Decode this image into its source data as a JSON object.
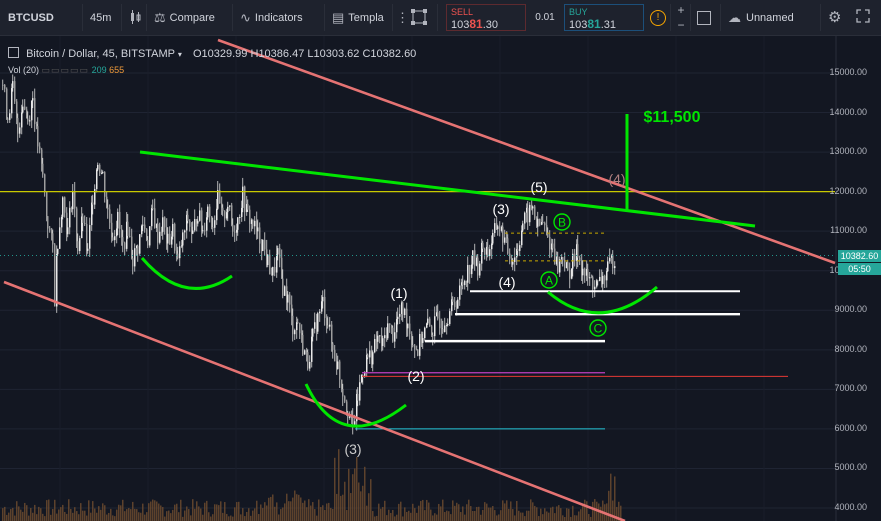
{
  "toolbar": {
    "symbol": "BTCUSD",
    "interval": "45m",
    "compare_label": "Compare",
    "indicators_label": "Indicators",
    "templates_label": "Templa",
    "sell_label": "SELL",
    "sell_price_main": "103",
    "sell_price_bold": "81",
    "sell_price_tail": ".30",
    "spread": "0.01",
    "buy_label": "BUY",
    "buy_price_main": "103",
    "buy_price_bold": "81",
    "buy_price_tail": ".31",
    "layout_name": "Unnamed"
  },
  "legend": {
    "title": "Bitcoin / Dollar, 45, BITSTAMP",
    "o_label": "O",
    "o_value": "10329.99",
    "h_label": "H",
    "h_value": "10386.47",
    "l_label": "L",
    "l_value": "10303.62",
    "c_label": "C",
    "c_value": "10382.60",
    "vol_label": "Vol (20)",
    "vol_value_1": "209",
    "vol_value_2": "655"
  },
  "price_axis": {
    "labels": [
      "15000.00",
      "14000.00",
      "13000.00",
      "12000.00",
      "11000.00",
      "10000.00",
      "9000.00",
      "8000.00",
      "7000.00",
      "6000.00",
      "5000.00",
      "4000.00"
    ],
    "current_price_tag": "10382.60",
    "countdown_tag": "05:50"
  },
  "annotations": {
    "target": "$11,500",
    "wave_1": "(1)",
    "wave_2": "(2)",
    "wave_3_low": "(3)",
    "wave_3_high": "(3)",
    "wave_4": "(4)",
    "wave_5": "(5)",
    "wave_4_faded": "(4)",
    "wave_A": "A",
    "wave_B": "B",
    "wave_C": "C"
  },
  "colors": {
    "background": "#131722",
    "candle_up": "#e8e8e8",
    "candle_down": "#e8e8e8",
    "trend_channel": "#e57373",
    "trend_green": "#00e600",
    "yellow_line": "#c8c800",
    "support_white": "#ffffff",
    "volume": "#7a5a3a"
  },
  "chart_data": {
    "type": "candlestick",
    "symbol": "BTCUSD",
    "exchange": "BITSTAMP",
    "timeframe": "45",
    "ylim": [
      3800,
      15500
    ],
    "y_ticks": [
      4000,
      5000,
      6000,
      7000,
      8000,
      9000,
      10000,
      11000,
      12000,
      13000,
      14000,
      15000
    ],
    "ohlc_last": {
      "open": 10329.99,
      "high": 10386.47,
      "low": 10303.62,
      "close": 10382.6
    },
    "price_path": [
      [
        0,
        14700
      ],
      [
        5,
        13900
      ],
      [
        10,
        14600
      ],
      [
        15,
        13500
      ],
      [
        20,
        14300
      ],
      [
        25,
        13800
      ],
      [
        30,
        14400
      ],
      [
        35,
        13200
      ],
      [
        40,
        12400
      ],
      [
        45,
        11200
      ],
      [
        50,
        10600
      ],
      [
        52,
        9300
      ],
      [
        55,
        10800
      ],
      [
        60,
        11800
      ],
      [
        65,
        11000
      ],
      [
        70,
        12000
      ],
      [
        75,
        10600
      ],
      [
        80,
        11300
      ],
      [
        85,
        10400
      ],
      [
        90,
        11900
      ],
      [
        95,
        12800
      ],
      [
        100,
        12400
      ],
      [
        105,
        11500
      ],
      [
        110,
        10900
      ],
      [
        115,
        11300
      ],
      [
        120,
        10600
      ],
      [
        125,
        11100
      ],
      [
        130,
        10300
      ],
      [
        135,
        10600
      ],
      [
        140,
        11200
      ],
      [
        145,
        10800
      ],
      [
        150,
        11500
      ],
      [
        155,
        10900
      ],
      [
        160,
        11200
      ],
      [
        165,
        10700
      ],
      [
        170,
        11000
      ],
      [
        175,
        10200
      ],
      [
        180,
        10800
      ],
      [
        185,
        11300
      ],
      [
        190,
        10900
      ],
      [
        195,
        11500
      ],
      [
        200,
        11000
      ],
      [
        205,
        11600
      ],
      [
        210,
        11200
      ],
      [
        215,
        11800
      ],
      [
        220,
        11300
      ],
      [
        225,
        11700
      ],
      [
        230,
        11000
      ],
      [
        235,
        11300
      ],
      [
        240,
        11900
      ],
      [
        245,
        11400
      ],
      [
        250,
        11200
      ],
      [
        255,
        10900
      ],
      [
        260,
        10700
      ],
      [
        265,
        10200
      ],
      [
        270,
        9900
      ],
      [
        275,
        10400
      ],
      [
        280,
        9600
      ],
      [
        285,
        9300
      ],
      [
        290,
        8600
      ],
      [
        295,
        8700
      ],
      [
        300,
        8100
      ],
      [
        305,
        7700
      ],
      [
        310,
        8300
      ],
      [
        315,
        8800
      ],
      [
        320,
        9200
      ],
      [
        325,
        8700
      ],
      [
        330,
        8000
      ],
      [
        335,
        7600
      ],
      [
        340,
        7000
      ],
      [
        345,
        6500
      ],
      [
        350,
        6000
      ],
      [
        355,
        6800
      ],
      [
        360,
        7500
      ],
      [
        365,
        7800
      ],
      [
        370,
        7900
      ],
      [
        375,
        8300
      ],
      [
        380,
        8100
      ],
      [
        385,
        8600
      ],
      [
        390,
        8400
      ],
      [
        395,
        8800
      ],
      [
        400,
        9000
      ],
      [
        405,
        8700
      ],
      [
        410,
        8200
      ],
      [
        415,
        8000
      ],
      [
        420,
        8400
      ],
      [
        425,
        8600
      ],
      [
        430,
        8500
      ],
      [
        435,
        8800
      ],
      [
        440,
        8700
      ],
      [
        445,
        8900
      ],
      [
        450,
        9100
      ],
      [
        455,
        9300
      ],
      [
        460,
        9700
      ],
      [
        465,
        10000
      ],
      [
        470,
        10300
      ],
      [
        475,
        10100
      ],
      [
        480,
        10600
      ],
      [
        485,
        10500
      ],
      [
        490,
        10800
      ],
      [
        495,
        11200
      ],
      [
        500,
        10900
      ],
      [
        505,
        10500
      ],
      [
        510,
        10300
      ],
      [
        515,
        10600
      ],
      [
        520,
        11200
      ],
      [
        525,
        11400
      ],
      [
        530,
        11600
      ],
      [
        535,
        11100
      ],
      [
        540,
        11200
      ],
      [
        545,
        10800
      ],
      [
        550,
        10600
      ],
      [
        555,
        10100
      ],
      [
        560,
        10400
      ],
      [
        565,
        9900
      ],
      [
        570,
        10200
      ],
      [
        575,
        10500
      ],
      [
        580,
        10000
      ],
      [
        585,
        9800
      ],
      [
        590,
        9700
      ],
      [
        595,
        9600
      ],
      [
        600,
        9800
      ],
      [
        605,
        10000
      ],
      [
        610,
        10300
      ],
      [
        614,
        10383
      ]
    ],
    "overlays": [
      {
        "kind": "horizontal",
        "price": 12000,
        "color": "yellow"
      },
      {
        "kind": "horizontal",
        "price": 9500,
        "label": "support"
      },
      {
        "kind": "horizontal",
        "price": 8900,
        "label": "support"
      },
      {
        "kind": "horizontal",
        "price": 8200,
        "label": "support"
      },
      {
        "kind": "horizontal",
        "price": 7400,
        "color": "magenta"
      },
      {
        "kind": "horizontal",
        "price": 7300,
        "color": "red"
      },
      {
        "kind": "horizontal",
        "price": 6000,
        "color": "cyan"
      },
      {
        "kind": "target",
        "price": 11500
      }
    ]
  }
}
